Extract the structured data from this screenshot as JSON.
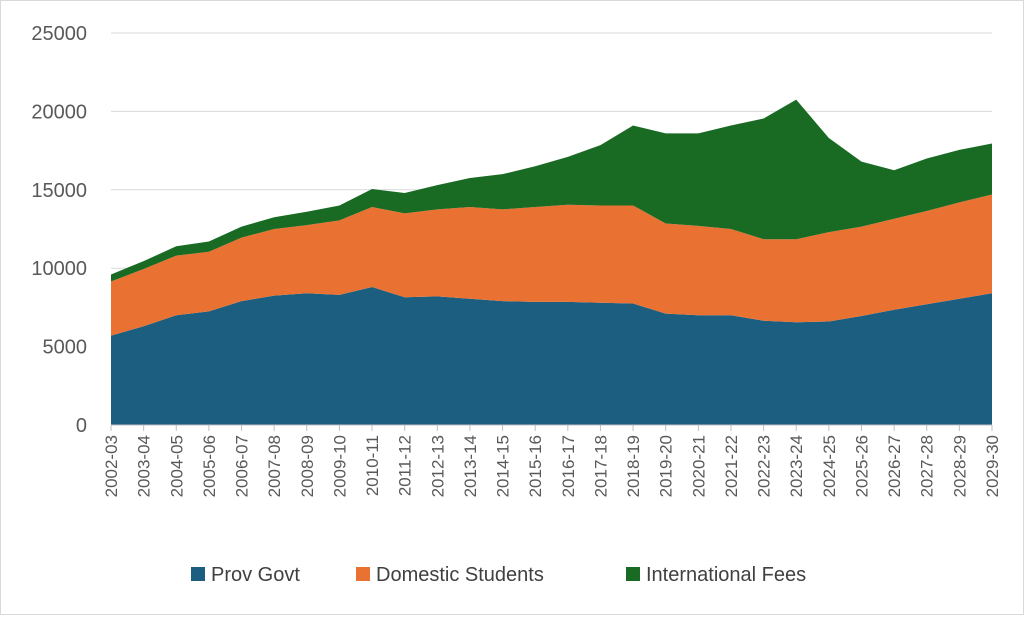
{
  "chart_data": {
    "type": "area",
    "stacked": true,
    "title": "",
    "xlabel": "",
    "ylabel": "",
    "ylim": [
      0,
      25000
    ],
    "yticks": [
      "0",
      "5000",
      "10000",
      "15000",
      "20000",
      "25000"
    ],
    "grid": "horizontal",
    "legend_position": "bottom",
    "categories": [
      "2002-03",
      "2003-04",
      "2004-05",
      "2005-06",
      "2006-07",
      "2007-08",
      "2008-09",
      "2009-10",
      "2010-11",
      "2011-12",
      "2012-13",
      "2013-14",
      "2014-15",
      "2015-16",
      "2016-17",
      "2017-18",
      "2018-19",
      "2019-20",
      "2020-21",
      "2021-22",
      "2022-23",
      "2023-24",
      "2024-25",
      "2025-26",
      "2026-27",
      "2027-28",
      "2028-29",
      "2029-30"
    ],
    "series": [
      {
        "name": "Prov Govt",
        "color": "#1b5e80",
        "values": [
          5700,
          6300,
          7000,
          7250,
          7900,
          8250,
          8400,
          8300,
          8800,
          8150,
          8200,
          8050,
          7900,
          7850,
          7850,
          7800,
          7750,
          7100,
          7000,
          7000,
          6650,
          6550,
          6600,
          6950,
          7350,
          7700,
          8050,
          8400
        ]
      },
      {
        "name": "Domestic Students",
        "color": "#e97132",
        "values": [
          3450,
          3650,
          3800,
          3800,
          4050,
          4250,
          4350,
          4750,
          5100,
          5350,
          5550,
          5850,
          5850,
          6050,
          6200,
          6200,
          6250,
          5750,
          5700,
          5500,
          5200,
          5300,
          5700,
          5700,
          5800,
          5950,
          6150,
          6300
        ]
      },
      {
        "name": "International Fees",
        "color": "#196b24",
        "values": [
          450,
          500,
          600,
          650,
          700,
          750,
          850,
          950,
          1150,
          1300,
          1550,
          1850,
          2250,
          2600,
          3050,
          3850,
          5100,
          5750,
          5900,
          6600,
          7700,
          8900,
          6000,
          4150,
          3100,
          3350,
          3350,
          3250
        ]
      }
    ]
  }
}
